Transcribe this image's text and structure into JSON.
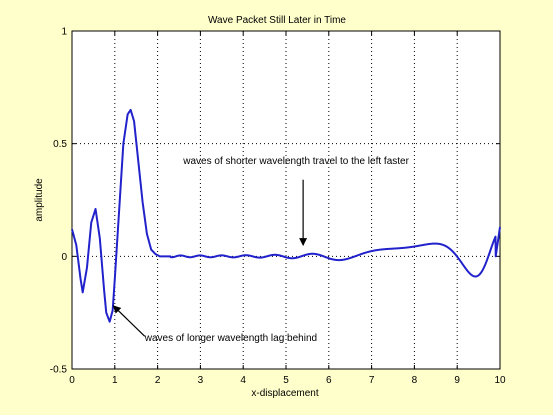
{
  "chart_data": {
    "type": "line",
    "title": "Wave Packet Still Later in Time",
    "xlabel": "x-displacement",
    "ylabel": "amplitude",
    "xlim": [
      0,
      10
    ],
    "ylim": [
      -0.5,
      1
    ],
    "x_ticks": [
      0,
      1,
      2,
      3,
      4,
      5,
      6,
      7,
      8,
      9,
      10
    ],
    "x_tick_labels": [
      "0",
      "1",
      "2",
      "3",
      "4",
      "5",
      "6",
      "7",
      "8",
      "9",
      "10"
    ],
    "y_ticks": [
      -0.5,
      0,
      0.5,
      1
    ],
    "y_tick_labels": [
      "-0.5",
      "0",
      "0.5",
      "1"
    ],
    "grid": true,
    "grid_style": "dotted",
    "line_color": "#2222cc",
    "background_color": "#ffffcc",
    "axes_color": "#ffffff",
    "series": [
      {
        "x": [
          0,
          0.1,
          0.2,
          0.25,
          0.35,
          0.45,
          0.55,
          0.65,
          0.75,
          0.8,
          0.88,
          0.95,
          1.0,
          1.1,
          1.2,
          1.3,
          1.37,
          1.45,
          1.55,
          1.65,
          1.75,
          1.85,
          1.95,
          2.05,
          2.15,
          2.3,
          2.5,
          2.8,
          3.0,
          3.3,
          3.6,
          3.9,
          4.2,
          4.5,
          4.8,
          5.1,
          5.4,
          5.7,
          6.0,
          6.3,
          6.6,
          6.9,
          7.2,
          7.5,
          7.8,
          8.1,
          8.4,
          8.7,
          9.0,
          9.3,
          9.6,
          9.75,
          9.9,
          10.0
        ],
        "y": [
          0.12,
          0.05,
          -0.1,
          -0.16,
          -0.05,
          0.15,
          0.21,
          0.08,
          -0.15,
          -0.25,
          -0.29,
          -0.24,
          -0.1,
          0.2,
          0.5,
          0.63,
          0.65,
          0.6,
          0.42,
          0.24,
          0.1,
          0.03,
          0.01,
          0.0,
          0.0,
          0.0,
          0.0,
          0.0,
          0.0,
          0.0,
          0.0,
          0.0,
          0.0,
          0.0,
          0.0,
          0.0,
          0.0,
          0.0,
          0.0,
          0.0,
          0.0,
          0.0,
          0.0,
          0.0,
          0.0,
          0.0,
          0.0,
          0.0,
          0.0,
          0.0,
          0.0,
          0.0,
          0.0,
          0.13
        ]
      }
    ],
    "annotations": [
      {
        "text": "waves of shorter wavelength travel to the left faster",
        "x": 2.6,
        "y": 0.41,
        "arrow_to": [
          5.4,
          0.05
        ],
        "arrow_from": [
          5.4,
          0.34
        ]
      },
      {
        "text": "waves of longer wavelength lag behind",
        "x": 1.7,
        "y": -0.375,
        "arrow_to": [
          0.97,
          -0.22
        ],
        "arrow_from": [
          1.7,
          -0.355
        ]
      }
    ]
  }
}
